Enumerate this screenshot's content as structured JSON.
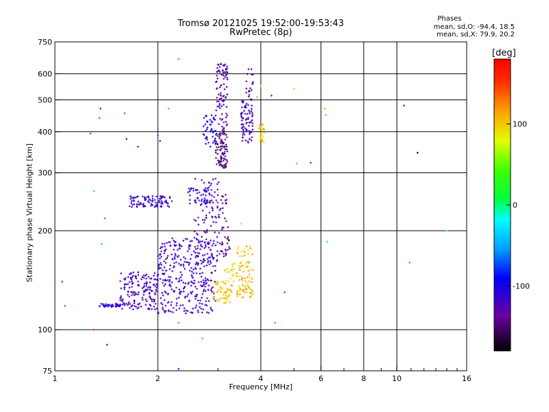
{
  "header": {
    "title_line1": "Tromsø 20121025 19:52:00-19:53:43",
    "title_line2": "RwPretec (8p)"
  },
  "stats": {
    "heading": "Phases",
    "line_o": "mean, sd,O: -94.4, 18.5",
    "line_x": "mean, sd,X:  79.9, 20.2"
  },
  "colorbar": {
    "unit": "[deg]",
    "ticks": [
      "100",
      "0",
      "-100"
    ],
    "tick_values": [
      100,
      0,
      -100
    ],
    "range": [
      -180,
      180
    ]
  },
  "chart_data": {
    "type": "scatter",
    "xlabel": "Frequency [MHz]",
    "ylabel": "Stationary phase Virtual Height [km]",
    "xscale": "log",
    "yscale": "log",
    "xlim": [
      1,
      16
    ],
    "ylim": [
      75,
      750
    ],
    "xticks": [
      1,
      2,
      4,
      6,
      8,
      10,
      16
    ],
    "xtick_labels": [
      "1",
      "2",
      "4",
      "6",
      "8",
      "10",
      "16"
    ],
    "xgrid": [
      2,
      4,
      6,
      8,
      10
    ],
    "yticks": [
      75,
      100,
      200,
      300,
      400,
      500,
      600,
      750
    ],
    "ytick_labels": [
      "75",
      "100",
      "200",
      "300",
      "400",
      "500",
      "600",
      "750"
    ],
    "ygrid": [
      100,
      200,
      300,
      400,
      500,
      600
    ],
    "grid": true,
    "color_encoding": "phase in degrees (colorbar)",
    "clusters": [
      {
        "f": [
          1.35,
          1.55
        ],
        "h": [
          117,
          120
        ],
        "phase": -110,
        "n": 40
      },
      {
        "f": [
          1.55,
          2.0
        ],
        "h": [
          115,
          150
        ],
        "phase": -120,
        "n": 170
      },
      {
        "f": [
          2.0,
          2.95
        ],
        "h": [
          112,
          190
        ],
        "phase": -115,
        "n": 340
      },
      {
        "f": [
          2.55,
          3.05
        ],
        "h": [
          160,
          290
        ],
        "phase": -120,
        "n": 110
      },
      {
        "f": [
          1.65,
          2.2
        ],
        "h": [
          236,
          255
        ],
        "phase": -115,
        "n": 90
      },
      {
        "f": [
          2.45,
          2.85
        ],
        "h": [
          240,
          270
        ],
        "phase": -115,
        "n": 40
      },
      {
        "f": [
          2.7,
          2.95
        ],
        "h": [
          360,
          450
        ],
        "phase": -105,
        "n": 45
      },
      {
        "f": [
          2.95,
          3.2
        ],
        "h": [
          400,
          650
        ],
        "phase": -130,
        "n": 95
      },
      {
        "f": [
          2.95,
          3.2
        ],
        "h": [
          310,
          400
        ],
        "phase": -145,
        "n": 90
      },
      {
        "f": [
          3.05,
          3.25
        ],
        "h": [
          160,
          260
        ],
        "phase": -140,
        "n": 40
      },
      {
        "f": [
          3.5,
          3.8
        ],
        "h": [
          370,
          500
        ],
        "phase": -125,
        "n": 80
      },
      {
        "f": [
          3.6,
          3.8
        ],
        "h": [
          500,
          620
        ],
        "phase": -135,
        "n": 20
      },
      {
        "f": [
          2.9,
          3.3
        ],
        "h": [
          120,
          140
        ],
        "phase": 100,
        "n": 60
      },
      {
        "f": [
          3.4,
          3.8
        ],
        "h": [
          125,
          180
        ],
        "phase": 105,
        "n": 90
      },
      {
        "f": [
          3.1,
          3.4
        ],
        "h": [
          140,
          160
        ],
        "phase": 90,
        "n": 20
      },
      {
        "f": [
          3.95,
          4.1
        ],
        "h": [
          370,
          430
        ],
        "phase": 100,
        "n": 25
      }
    ],
    "outliers": [
      {
        "f": 1.05,
        "h": 140,
        "phase": 170
      },
      {
        "f": 1.07,
        "h": 118,
        "phase": -60
      },
      {
        "f": 1.27,
        "h": 395,
        "phase": 150
      },
      {
        "f": 1.3,
        "h": 264,
        "phase": -40
      },
      {
        "f": 1.36,
        "h": 470,
        "phase": -130
      },
      {
        "f": 1.35,
        "h": 440,
        "phase": 150
      },
      {
        "f": 1.4,
        "h": 218,
        "phase": 160
      },
      {
        "f": 1.37,
        "h": 182,
        "phase": -40
      },
      {
        "f": 1.42,
        "h": 90,
        "phase": -160
      },
      {
        "f": 1.3,
        "h": 100,
        "phase": 160
      },
      {
        "f": 1.6,
        "h": 455,
        "phase": 150
      },
      {
        "f": 1.62,
        "h": 380,
        "phase": -110
      },
      {
        "f": 1.75,
        "h": 360,
        "phase": -110
      },
      {
        "f": 2.0,
        "h": 390,
        "phase": -80
      },
      {
        "f": 2.03,
        "h": 375,
        "phase": -110
      },
      {
        "f": 2.15,
        "h": 470,
        "phase": 130
      },
      {
        "f": 2.3,
        "h": 665,
        "phase": 140
      },
      {
        "f": 2.3,
        "h": 105,
        "phase": 140
      },
      {
        "f": 2.3,
        "h": 76,
        "phase": -90
      },
      {
        "f": 2.7,
        "h": 94,
        "phase": 130
      },
      {
        "f": 3.5,
        "h": 210,
        "phase": 60
      },
      {
        "f": 3.9,
        "h": 510,
        "phase": 110
      },
      {
        "f": 4.0,
        "h": 550,
        "phase": 110
      },
      {
        "f": 4.3,
        "h": 515,
        "phase": -130
      },
      {
        "f": 4.4,
        "h": 105,
        "phase": 140
      },
      {
        "f": 4.7,
        "h": 130,
        "phase": -70
      },
      {
        "f": 5.0,
        "h": 540,
        "phase": 60
      },
      {
        "f": 5.1,
        "h": 320,
        "phase": 30
      },
      {
        "f": 5.6,
        "h": 322,
        "phase": -130
      },
      {
        "f": 6.15,
        "h": 470,
        "phase": 120
      },
      {
        "f": 6.2,
        "h": 450,
        "phase": 10
      },
      {
        "f": 6.25,
        "h": 185,
        "phase": 10
      },
      {
        "f": 10.5,
        "h": 480,
        "phase": -110
      },
      {
        "f": 10.9,
        "h": 160,
        "phase": 140
      },
      {
        "f": 11.5,
        "h": 345,
        "phase": -180
      },
      {
        "f": 14.0,
        "h": 200,
        "phase": -30
      }
    ]
  }
}
